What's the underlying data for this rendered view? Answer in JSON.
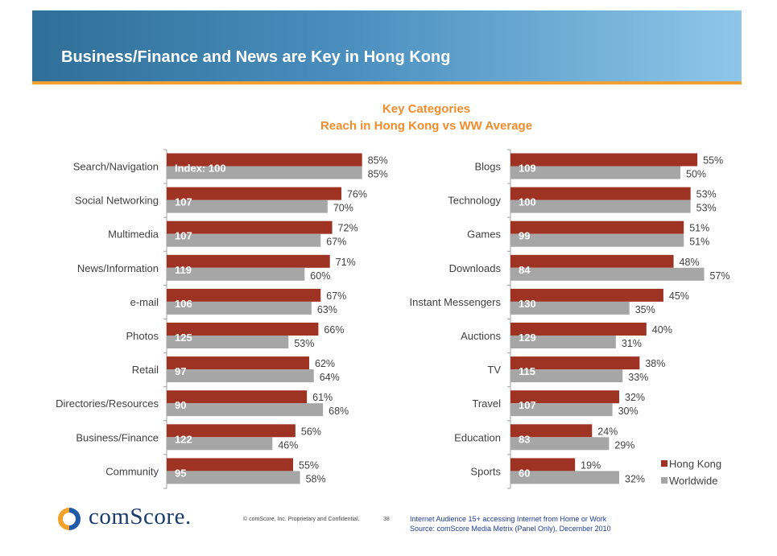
{
  "header": {
    "title": "Business/Finance and News are Key in Hong Kong"
  },
  "chart_data": {
    "type": "bar",
    "orientation": "horizontal",
    "title_line1": "Key Categories",
    "title_line2": "Reach in Hong Kong vs WW Average",
    "legend": [
      "Hong Kong",
      "Worldwide"
    ],
    "colors": {
      "hong_kong": "#9e3324",
      "worldwide": "#a6a6a6"
    },
    "panels": [
      {
        "categories": [
          "Search/Navigation",
          "Social Networking",
          "Multimedia",
          "News/Information",
          "e-mail",
          "Photos",
          "Retail",
          "Directories/Resources",
          "Business/Finance",
          "Community"
        ],
        "hong_kong": [
          85,
          76,
          72,
          71,
          67,
          66,
          62,
          61,
          56,
          55
        ],
        "worldwide": [
          85,
          70,
          67,
          60,
          63,
          53,
          64,
          68,
          46,
          58
        ],
        "hk_labels": [
          "85%",
          "76%",
          "72%",
          "71%",
          "67%",
          "66%",
          "62%",
          "61%",
          "56%",
          "55%"
        ],
        "ww_labels": [
          "85%",
          "70%",
          "67%",
          "60%",
          "63%",
          "53%",
          "64%",
          "68%",
          "46%",
          "58%"
        ],
        "index_labels": [
          "Index: 100",
          "107",
          "107",
          "119",
          "106",
          "125",
          "97",
          "90",
          "122",
          "95"
        ]
      },
      {
        "categories": [
          "Blogs",
          "Technology",
          "Games",
          "Downloads",
          "Instant Messengers",
          "Auctions",
          "TV",
          "Travel",
          "Education",
          "Sports"
        ],
        "hong_kong": [
          55,
          53,
          51,
          48,
          45,
          40,
          38,
          32,
          24,
          19
        ],
        "worldwide": [
          50,
          53,
          51,
          57,
          35,
          31,
          33,
          30,
          29,
          32
        ],
        "hk_labels": [
          "55%",
          "53%",
          "51%",
          "48%",
          "45%",
          "40%",
          "38%",
          "32%",
          "24%",
          "19%"
        ],
        "ww_labels": [
          "50%",
          "53%",
          "51%",
          "57%",
          "35%",
          "31%",
          "33%",
          "30%",
          "29%",
          "32%"
        ],
        "index_labels": [
          "109",
          "100",
          "99",
          "84",
          "130",
          "129",
          "115",
          "107",
          "83",
          "60"
        ]
      }
    ]
  },
  "footer": {
    "logo_text": "comScore.",
    "copyright": "© comScore, Inc.  Proprietary and Confidential.",
    "page_number": "38",
    "source_line1": "Internet Audience 15+ accessing Internet from Home or Work",
    "source_line2": "Source:  comScore Media Metrix (Panel Only), December 2010"
  }
}
